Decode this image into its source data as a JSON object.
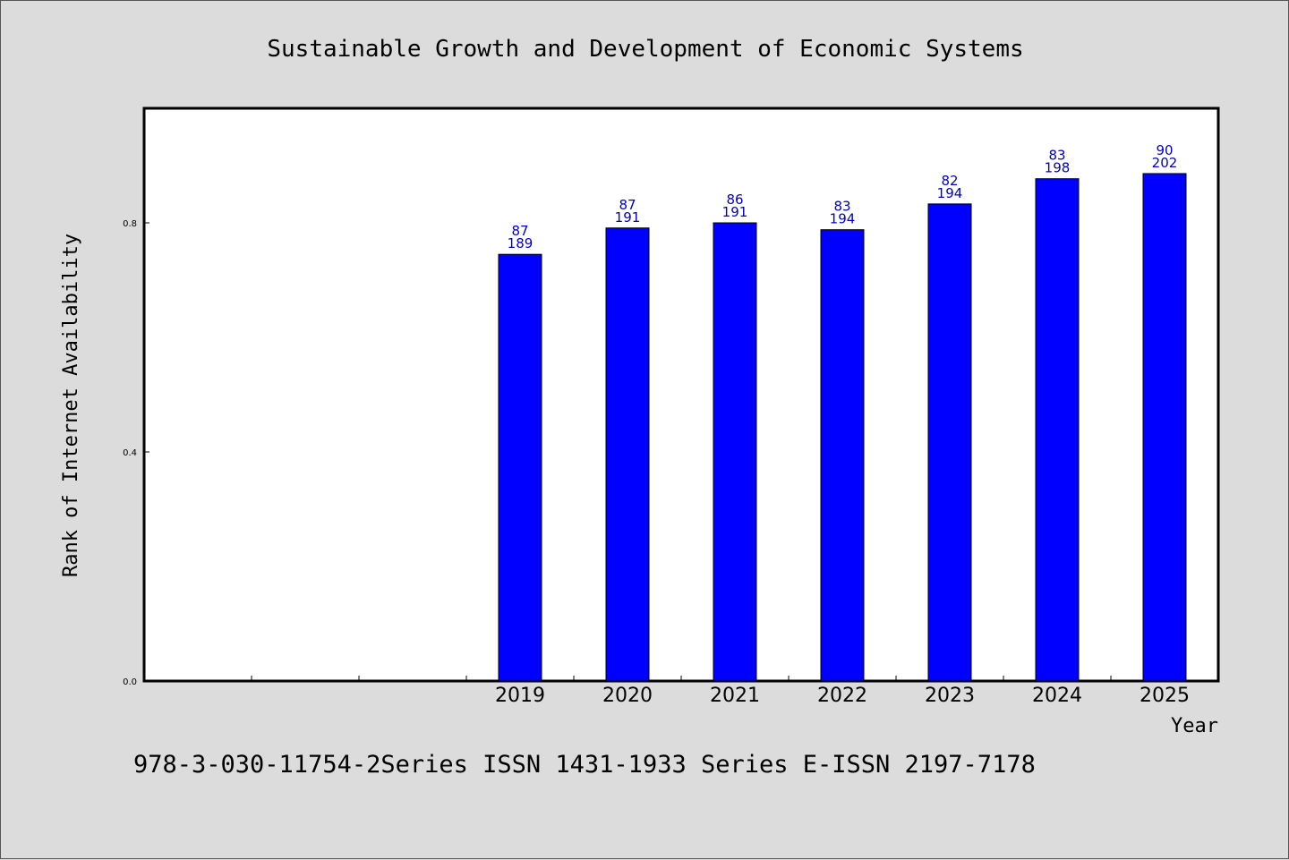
{
  "colors": {
    "background": "#dcdcdc",
    "plot_background": "#ffffff",
    "bar_fill": "#0000ff",
    "bar_stroke": "#000000",
    "bar_label": "#0000cc"
  },
  "footer": {
    "text": "978-3-030-11754-2Series ISSN 1431-1933 Series E-ISSN 2197-7178"
  },
  "chart_data": {
    "type": "bar",
    "title": "Sustainable Growth and Development of Economic Systems",
    "xlabel": "Year",
    "ylabel": "Rank of Internet Availability",
    "ylim": [
      0,
      1.0
    ],
    "yticks": [
      0.0,
      0.4,
      0.8
    ],
    "ytick_labels": [
      "0.0",
      "0.4",
      "0.8"
    ],
    "slots": 10,
    "categories": [
      "2019",
      "2020",
      "2021",
      "2022",
      "2023",
      "2024",
      "2025"
    ],
    "category_slot_start": 3,
    "values": [
      0.745,
      0.791,
      0.8,
      0.788,
      0.833,
      0.877,
      0.886
    ],
    "annotations": [
      [
        "87",
        "189"
      ],
      [
        "87",
        "191"
      ],
      [
        "86",
        "191"
      ],
      [
        "83",
        "194"
      ],
      [
        "82",
        "194"
      ],
      [
        "83",
        "198"
      ],
      [
        "90",
        "202"
      ]
    ],
    "grid": false,
    "legend": "none"
  }
}
